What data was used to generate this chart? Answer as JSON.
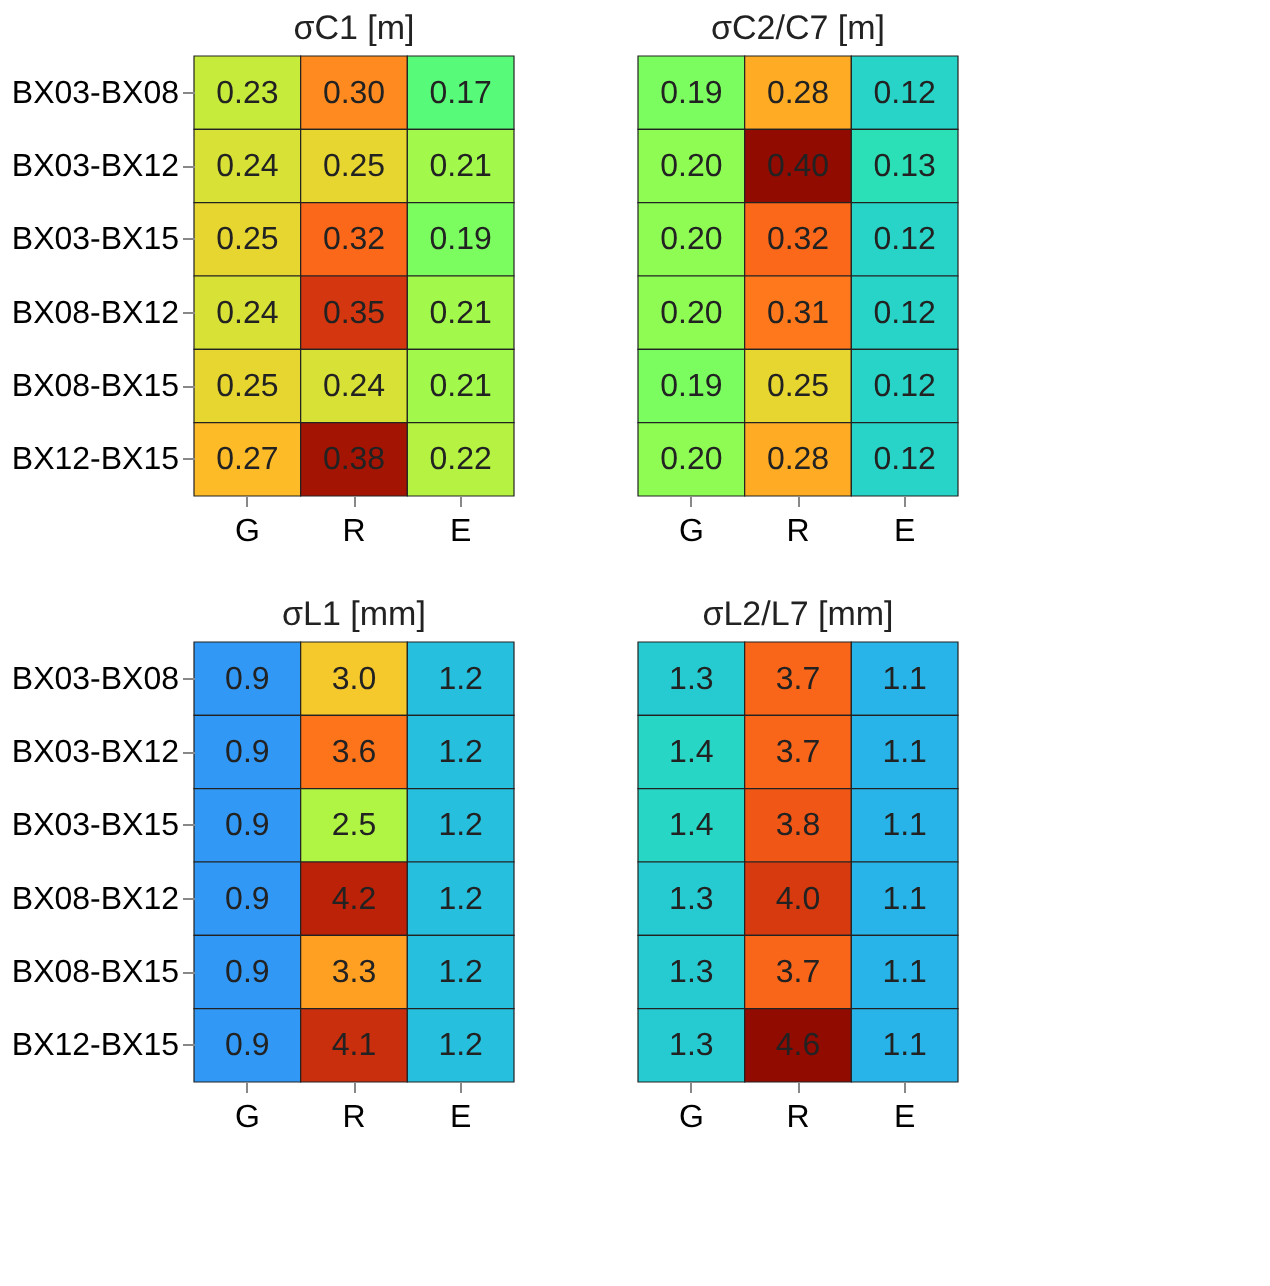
{
  "chart_data": [
    {
      "type": "heatmap",
      "title": "σC1 [m]",
      "categories": [
        "G",
        "R",
        "E"
      ],
      "y_categories": [
        "BX03-BX08",
        "BX03-BX12",
        "BX03-BX15",
        "BX08-BX12",
        "BX08-BX15",
        "BX12-BX15"
      ],
      "cells": [
        [
          0.23,
          0.3,
          0.17
        ],
        [
          0.24,
          0.25,
          0.21
        ],
        [
          0.25,
          0.32,
          0.19
        ],
        [
          0.24,
          0.35,
          0.21
        ],
        [
          0.25,
          0.24,
          0.21
        ],
        [
          0.27,
          0.38,
          0.22
        ]
      ],
      "cell_labels": [
        [
          "0.23",
          "0.30",
          "0.17"
        ],
        [
          "0.24",
          "0.25",
          "0.21"
        ],
        [
          "0.25",
          "0.32",
          "0.19"
        ],
        [
          "0.24",
          "0.35",
          "0.21"
        ],
        [
          "0.25",
          "0.24",
          "0.21"
        ],
        [
          "0.27",
          "0.38",
          "0.22"
        ]
      ]
    },
    {
      "type": "heatmap",
      "title": "σC2/C7 [m]",
      "categories": [
        "G",
        "R",
        "E"
      ],
      "y_categories": [
        "BX03-BX08",
        "BX03-BX12",
        "BX03-BX15",
        "BX08-BX12",
        "BX08-BX15",
        "BX12-BX15"
      ],
      "tick_labels": "x",
      "cells": [
        [
          0.19,
          0.28,
          0.12
        ],
        [
          0.2,
          0.4,
          0.13
        ],
        [
          0.2,
          0.32,
          0.12
        ],
        [
          0.2,
          0.31,
          0.12
        ],
        [
          0.19,
          0.25,
          0.12
        ],
        [
          0.2,
          0.28,
          0.12
        ]
      ],
      "cell_labels": [
        [
          "0.19",
          "0.28",
          "0.12"
        ],
        [
          "0.20",
          "0.40",
          "0.13"
        ],
        [
          "0.20",
          "0.32",
          "0.12"
        ],
        [
          "0.20",
          "0.31",
          "0.12"
        ],
        [
          "0.19",
          "0.25",
          "0.12"
        ],
        [
          "0.20",
          "0.28",
          "0.12"
        ]
      ]
    },
    {
      "type": "heatmap",
      "title": "σL1 [mm]",
      "categories": [
        "G",
        "R",
        "E"
      ],
      "y_categories": [
        "BX03-BX08",
        "BX03-BX12",
        "BX03-BX15",
        "BX08-BX12",
        "BX08-BX15",
        "BX12-BX15"
      ],
      "cells": [
        [
          0.9,
          3.0,
          1.2
        ],
        [
          0.9,
          3.6,
          1.2
        ],
        [
          0.9,
          2.5,
          1.2
        ],
        [
          0.9,
          4.2,
          1.2
        ],
        [
          0.9,
          3.3,
          1.2
        ],
        [
          0.9,
          4.1,
          1.2
        ]
      ],
      "cell_labels": [
        [
          "0.9",
          "3.0",
          "1.2"
        ],
        [
          "0.9",
          "3.6",
          "1.2"
        ],
        [
          "0.9",
          "2.5",
          "1.2"
        ],
        [
          "0.9",
          "4.2",
          "1.2"
        ],
        [
          "0.9",
          "3.3",
          "1.2"
        ],
        [
          "0.9",
          "4.1",
          "1.2"
        ]
      ]
    },
    {
      "type": "heatmap",
      "title": "σL2/L7 [mm]",
      "categories": [
        "G",
        "R",
        "E"
      ],
      "y_categories": [
        "BX03-BX08",
        "BX03-BX12",
        "BX03-BX15",
        "BX08-BX12",
        "BX08-BX15",
        "BX12-BX15"
      ],
      "tick_labels": "x",
      "cells": [
        [
          1.3,
          3.7,
          1.1
        ],
        [
          1.4,
          3.7,
          1.1
        ],
        [
          1.4,
          3.8,
          1.1
        ],
        [
          1.3,
          4.0,
          1.1
        ],
        [
          1.3,
          3.7,
          1.1
        ],
        [
          1.3,
          4.6,
          1.1
        ]
      ],
      "cell_labels": [
        [
          "1.3",
          "3.7",
          "1.1"
        ],
        [
          "1.4",
          "3.7",
          "1.1"
        ],
        [
          "1.4",
          "3.8",
          "1.1"
        ],
        [
          "1.3",
          "4.0",
          "1.1"
        ],
        [
          "1.3",
          "3.7",
          "1.1"
        ],
        [
          "1.3",
          "4.6",
          "1.1"
        ]
      ]
    }
  ]
}
